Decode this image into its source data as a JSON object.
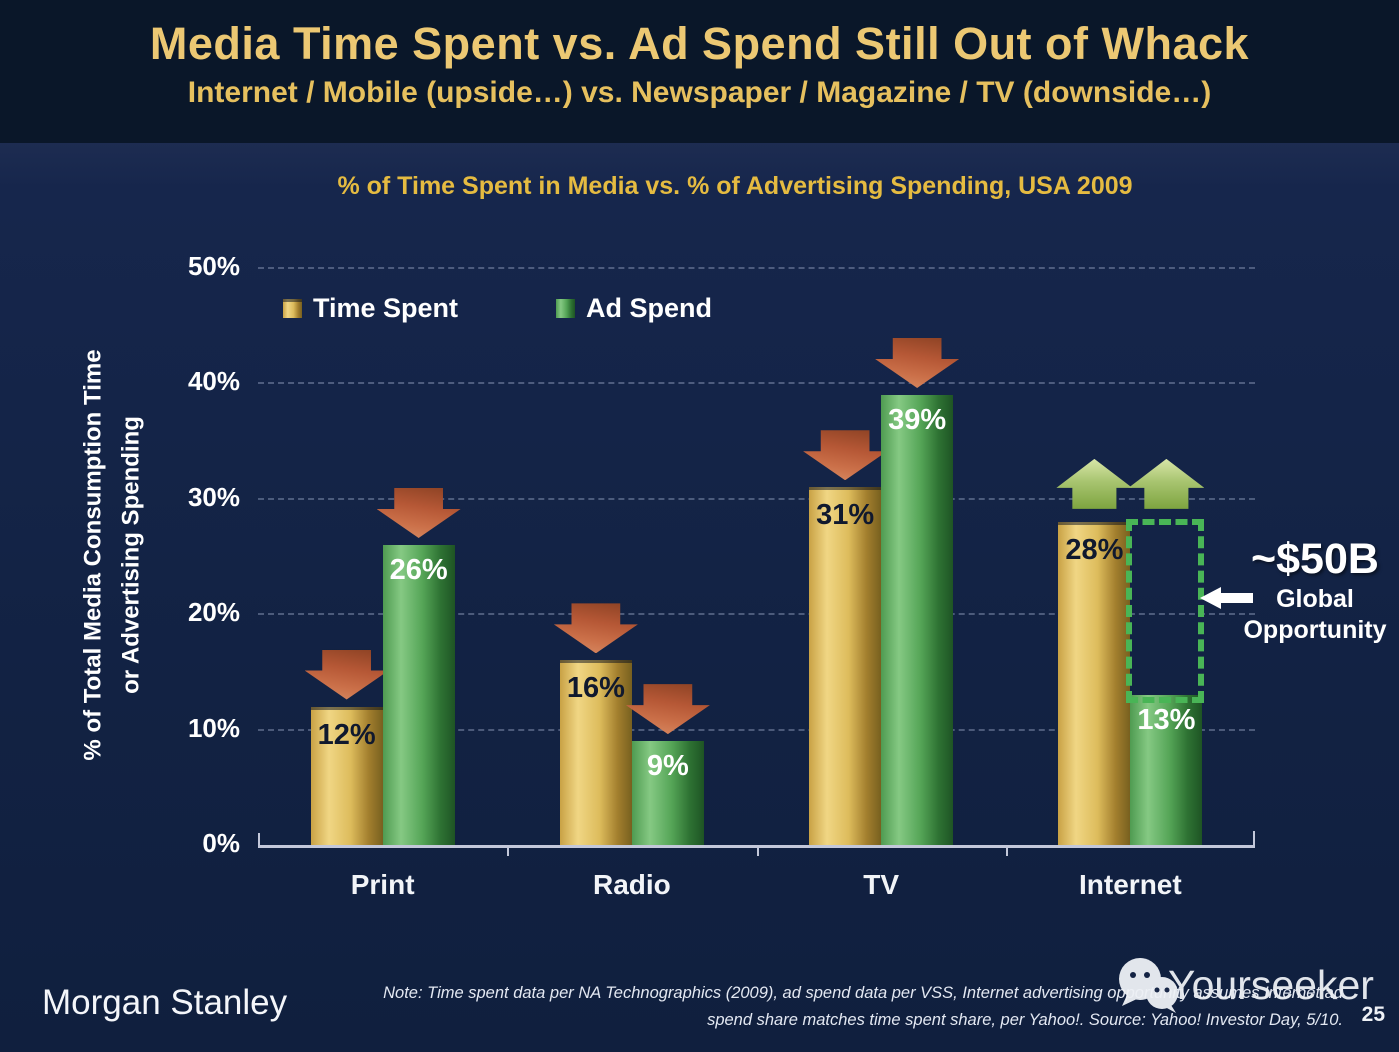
{
  "header": {
    "title": "Media Time Spent vs. Ad Spend Still Out of Whack",
    "subtitle": "Internet / Mobile (upside…) vs. Newspaper / Magazine / TV (downside…)"
  },
  "chart_data": {
    "type": "bar",
    "title": "% of Time Spent in Media vs. % of Advertising Spending, USA 2009",
    "categories": [
      "Print",
      "Radio",
      "TV",
      "Internet"
    ],
    "series": [
      {
        "name": "Time Spent",
        "values": [
          12,
          16,
          31,
          28
        ],
        "value_labels": [
          "12%",
          "16%",
          "31%",
          "28%"
        ],
        "color": "#d9b254"
      },
      {
        "name": "Ad Spend",
        "values": [
          26,
          9,
          39,
          13
        ],
        "value_labels": [
          "26%",
          "9%",
          "39%",
          "13%"
        ],
        "color": "#55a557"
      }
    ],
    "ylabel_line1": "% of Total Media Consumption Time",
    "ylabel_line2": "or Advertising Spending",
    "ylim": [
      0,
      50
    ],
    "yticks": [
      "0%",
      "10%",
      "20%",
      "30%",
      "40%",
      "50%"
    ],
    "grid": "dotted horizontal gridlines",
    "legend_position": "top-left inside plot",
    "annotations": {
      "down_arrow_categories": [
        "Print",
        "Radio",
        "TV"
      ],
      "up_arrow_categories": [
        "Internet"
      ],
      "down_arrow_color": "#bf5f3b",
      "up_arrow_color": "#a9c573",
      "opportunity_gap_category": "Internet",
      "opportunity_value": "~$50B",
      "opportunity_line1": "Global",
      "opportunity_line2": "Opportunity",
      "opportunity_rect_color": "#49b556"
    }
  },
  "footer": {
    "logo": "Morgan Stanley",
    "note_line1": "Note: Time spent data per NA Technographics (2009), ad spend data per VSS, Internet advertising opportunity assumes Internet ad",
    "note_line2": "spend share matches time spent share, per Yahoo!. Source: Yahoo! Investor Day, 5/10.",
    "page_number": "25",
    "watermark": "Yourseeker"
  },
  "colors": {
    "header_bg": "#0a1729",
    "body_bg": "#132444",
    "title_gold": "#ecc873",
    "chart_title_gold": "#e5bb41",
    "axis": "#c3c8da"
  }
}
